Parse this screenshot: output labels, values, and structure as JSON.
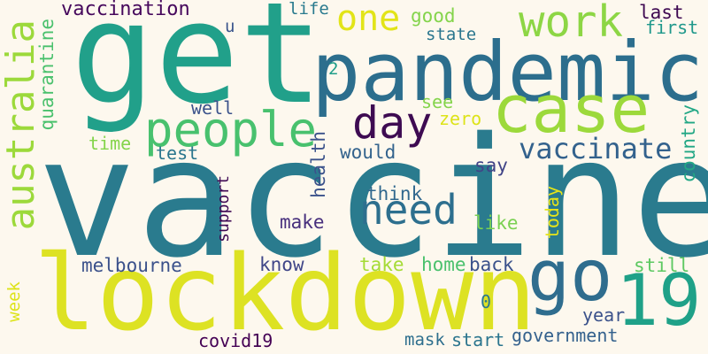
{
  "words": [
    {
      "id": "vaccine",
      "text": "vaccine",
      "color": "#2a7b8e"
    },
    {
      "id": "get",
      "text": "get",
      "color": "#21a08a"
    },
    {
      "id": "pandemic",
      "text": "pandemic",
      "color": "#2c6e8d"
    },
    {
      "id": "lockdown",
      "text": "lockdown",
      "color": "#dde223"
    },
    {
      "id": "case",
      "text": "case",
      "color": "#9cd93b"
    },
    {
      "id": "go",
      "text": "go",
      "color": "#2f6d8e"
    },
    {
      "id": "n19",
      "text": "19",
      "color": "#1fa188"
    },
    {
      "id": "work",
      "text": "work",
      "color": "#8dd645"
    },
    {
      "id": "people",
      "text": "people",
      "color": "#48c16e"
    },
    {
      "id": "day",
      "text": "day",
      "color": "#3e0b52"
    },
    {
      "id": "need",
      "text": "need",
      "color": "#2d6f8e"
    },
    {
      "id": "australia",
      "text": "australia",
      "color": "#9cd93b"
    },
    {
      "id": "one",
      "text": "one",
      "color": "#e2e418"
    },
    {
      "id": "vaccinate",
      "text": "vaccinate",
      "color": "#33628d"
    },
    {
      "id": "vaccination",
      "text": "vaccination",
      "color": "#46085c"
    },
    {
      "id": "melbourne",
      "text": "melbourne",
      "color": "#3b518b"
    },
    {
      "id": "quarantine",
      "text": "quarantine",
      "color": "#4ac16d"
    },
    {
      "id": "good",
      "text": "good",
      "color": "#84d44b"
    },
    {
      "id": "state",
      "text": "state",
      "color": "#2a768e"
    },
    {
      "id": "life",
      "text": "life",
      "color": "#297a8e"
    },
    {
      "id": "last",
      "text": "last",
      "color": "#3e0851"
    },
    {
      "id": "first",
      "text": "first",
      "color": "#1f988b"
    },
    {
      "id": "u",
      "text": "u",
      "color": "#3a548c"
    },
    {
      "id": "n2",
      "text": "2",
      "color": "#1f9e89"
    },
    {
      "id": "well",
      "text": "well",
      "color": "#3b528b"
    },
    {
      "id": "see",
      "text": "see",
      "color": "#84d44b"
    },
    {
      "id": "zero",
      "text": "zero",
      "color": "#dde318"
    },
    {
      "id": "country",
      "text": "country",
      "color": "#22a785"
    },
    {
      "id": "time",
      "text": "time",
      "color": "#84d44b"
    },
    {
      "id": "test",
      "text": "test",
      "color": "#2a768e"
    },
    {
      "id": "health",
      "text": "health",
      "color": "#3b528b"
    },
    {
      "id": "would",
      "text": "would",
      "color": "#33638d"
    },
    {
      "id": "say",
      "text": "say",
      "color": "#414487"
    },
    {
      "id": "support",
      "text": "support",
      "color": "#3e0853"
    },
    {
      "id": "think",
      "text": "think",
      "color": "#31688e"
    },
    {
      "id": "today",
      "text": "today",
      "color": "#e7e419"
    },
    {
      "id": "make",
      "text": "make",
      "color": "#472f7d"
    },
    {
      "id": "like",
      "text": "like",
      "color": "#7ad151"
    },
    {
      "id": "know",
      "text": "know",
      "color": "#404688"
    },
    {
      "id": "take",
      "text": "take",
      "color": "#a5db36"
    },
    {
      "id": "home",
      "text": "home",
      "color": "#4ac16d"
    },
    {
      "id": "back",
      "text": "back",
      "color": "#3b528b"
    },
    {
      "id": "still",
      "text": "still",
      "color": "#5ec962"
    },
    {
      "id": "week",
      "text": "week",
      "color": "#dde318"
    },
    {
      "id": "n0",
      "text": "0",
      "color": "#2a788e"
    },
    {
      "id": "year",
      "text": "year",
      "color": "#3b528b"
    },
    {
      "id": "covid19",
      "text": "covid19",
      "color": "#440154"
    },
    {
      "id": "mask",
      "text": "mask",
      "color": "#2e6f8e"
    },
    {
      "id": "start",
      "text": "start",
      "color": "#2b758e"
    },
    {
      "id": "government",
      "text": "government",
      "color": "#34618d"
    }
  ]
}
